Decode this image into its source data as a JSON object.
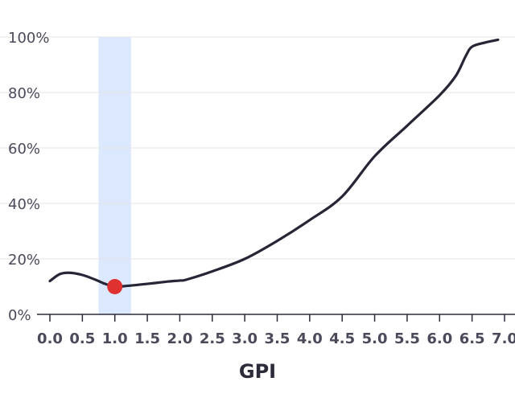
{
  "chart_data": {
    "type": "line",
    "title": "",
    "xlabel": "GPI",
    "ylabel": "",
    "xlim": [
      0,
      7.0
    ],
    "ylim": [
      0,
      100
    ],
    "x_ticks": [
      0.0,
      0.5,
      1.0,
      1.5,
      2.0,
      2.5,
      3.0,
      3.5,
      4.0,
      4.5,
      5.0,
      5.5,
      6.0,
      6.5,
      7.0
    ],
    "x_tick_labels": [
      "0.0",
      "0.5",
      "1.0",
      "1.5",
      "2.0",
      "2.5",
      "3.0",
      "3.5",
      "4.0",
      "4.5",
      "5.0",
      "5.5",
      "6.0",
      "6.5",
      "7.0"
    ],
    "y_ticks": [
      0,
      20,
      40,
      60,
      80,
      100
    ],
    "y_tick_labels": [
      "0%",
      "20%",
      "40%",
      "60%",
      "80%",
      "100%"
    ],
    "grid": "horizontal",
    "series": [
      {
        "name": "curve",
        "color": "#262637",
        "x": [
          0.0,
          0.15,
          0.3,
          0.5,
          0.7,
          0.85,
          1.0,
          1.2,
          1.5,
          1.8,
          2.0,
          2.1,
          2.5,
          3.0,
          3.5,
          4.0,
          4.5,
          5.0,
          5.5,
          6.0,
          6.25,
          6.4,
          6.5,
          6.7,
          6.9
        ],
        "y": [
          12,
          14.5,
          15,
          14.2,
          12.5,
          11,
          10,
          10.3,
          11,
          11.8,
          12.2,
          12.5,
          15.5,
          20,
          26.5,
          34,
          42.5,
          57,
          68,
          79,
          86,
          93,
          96.5,
          98,
          99
        ]
      }
    ],
    "highlight_band": {
      "x_start": 0.75,
      "x_end": 1.25,
      "color": "#dce8fd"
    },
    "marker": {
      "x": 1.0,
      "y": 10,
      "color": "#e03131"
    }
  }
}
